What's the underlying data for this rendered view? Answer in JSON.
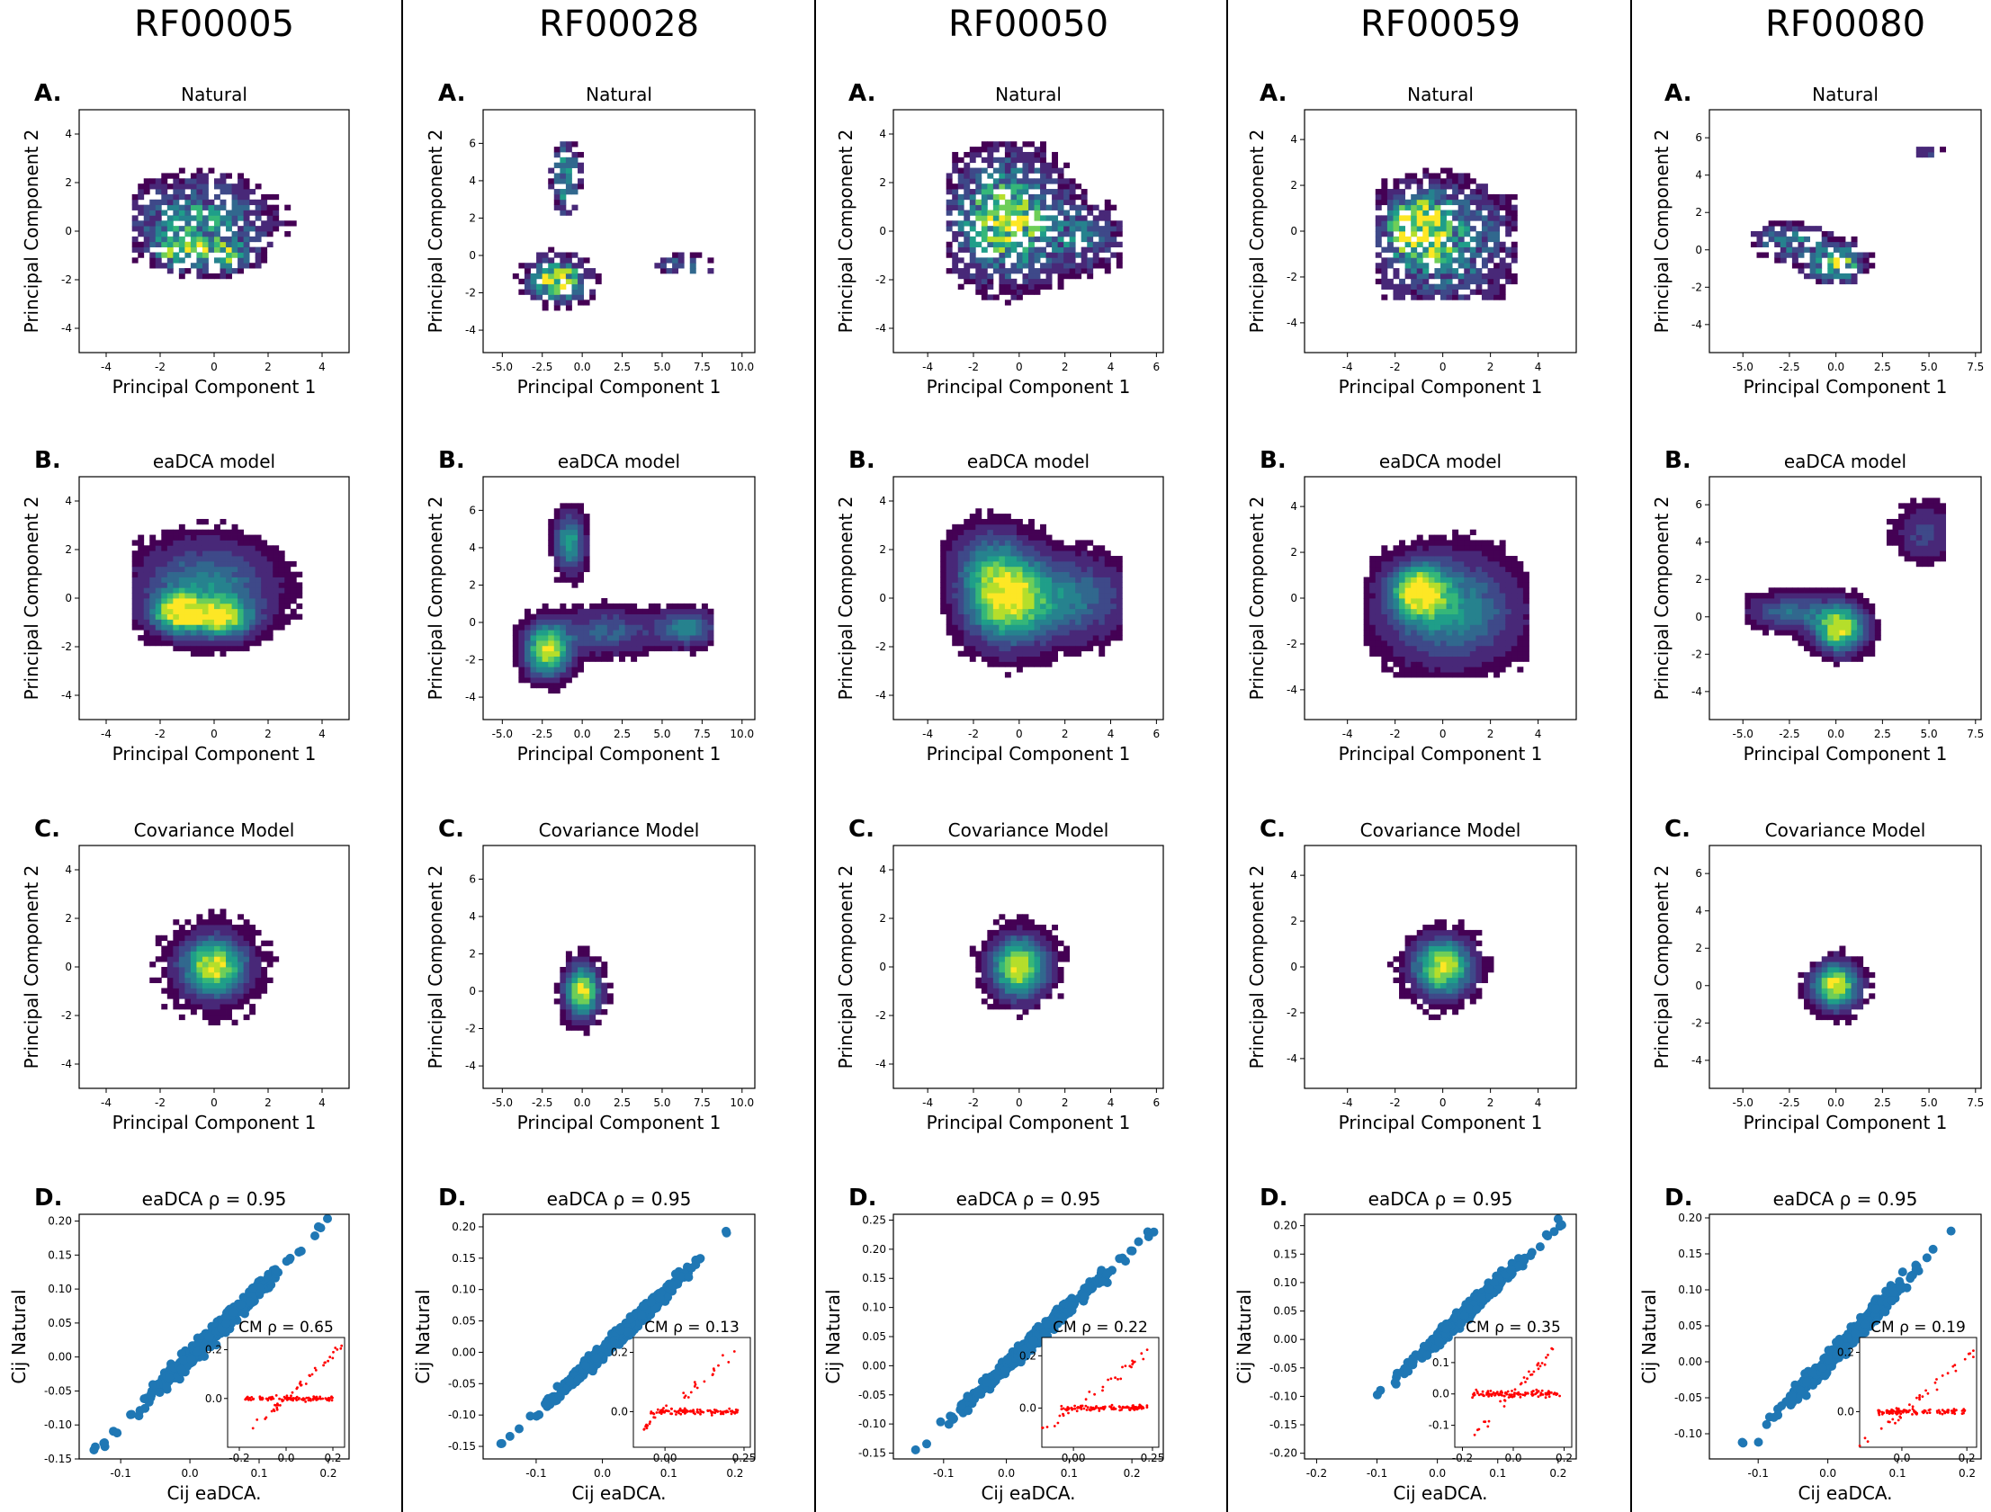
{
  "colors": {
    "viridis": [
      "#440154",
      "#482878",
      "#3e4989",
      "#31688e",
      "#26828e",
      "#1f9e89",
      "#35b779",
      "#6ece58",
      "#b5de2b",
      "#fde725"
    ],
    "scatter_main": "#1f77b4",
    "scatter_inset": "#ff0000",
    "divider": "#000000"
  },
  "chart_data": {
    "type": "figure-grid",
    "row_titles": [
      "Natural",
      "eaDCA model",
      "Covariance Model"
    ],
    "panel_letters": [
      "A.",
      "B.",
      "C.",
      "D."
    ],
    "pca_xlabel": "Principal Component 1",
    "pca_ylabel": "Principal Component 2",
    "scatter_xlabel": "Cij eaDCA.",
    "scatter_ylabel": "Cij Natural",
    "columns": [
      {
        "family": "RF00005",
        "pca_xlim": [
          -5,
          5
        ],
        "pca_ylim": [
          -5,
          5
        ],
        "pca_xticks": [
          "-4",
          "-2",
          "0",
          "2",
          "4"
        ],
        "pca_xtick_vals": [
          -4,
          -2,
          0,
          2,
          4
        ],
        "pca_yticks": [
          "-4",
          "-2",
          "0",
          "2",
          "4"
        ],
        "pca_ytick_vals": [
          -4,
          -2,
          0,
          2,
          4
        ],
        "natural_blobs": [
          {
            "x": -1.3,
            "y": -0.7,
            "sx": 0.5,
            "sy": 0.4,
            "w": 1.0
          },
          {
            "x": 0.3,
            "y": -1.0,
            "sx": 0.6,
            "sy": 0.4,
            "w": 0.7
          },
          {
            "x": -0.5,
            "y": 0.4,
            "sx": 1.6,
            "sy": 1.1,
            "w": 0.6
          }
        ],
        "natural_range": {
          "x": [
            -3.0,
            3.0
          ],
          "y": [
            -2.6,
            2.7
          ]
        },
        "model_blobs": [
          {
            "x": -1.3,
            "y": -0.6,
            "sx": 0.6,
            "sy": 0.5,
            "w": 1.0
          },
          {
            "x": 0.3,
            "y": -0.8,
            "sx": 0.7,
            "sy": 0.5,
            "w": 0.8
          },
          {
            "x": -0.3,
            "y": 0.4,
            "sx": 1.6,
            "sy": 1.2,
            "w": 0.5
          }
        ],
        "model_range": {
          "x": [
            -3.1,
            3.2
          ],
          "y": [
            -2.7,
            3.4
          ]
        },
        "cm_blob": {
          "x": 0.0,
          "y": 0.0,
          "sx": 0.8,
          "sy": 0.8,
          "r": 2.6
        },
        "scatter_title": "eaDCA ρ = 0.95",
        "scatter_xlim": [
          -0.16,
          0.23
        ],
        "scatter_ylim": [
          -0.15,
          0.21
        ],
        "scatter_xticks": [
          "-0.1",
          "0.0",
          "0.1",
          "0.2"
        ],
        "scatter_xtick_vals": [
          -0.1,
          0.0,
          0.1,
          0.2
        ],
        "scatter_yticks": [
          "-0.15",
          "-0.10",
          "-0.05",
          "0.00",
          "0.05",
          "0.10",
          "0.15",
          "0.20"
        ],
        "scatter_ytick_vals": [
          -0.15,
          -0.1,
          -0.05,
          0.0,
          0.05,
          0.1,
          0.15,
          0.2
        ],
        "scatter_main_range": [
          -0.14,
          0.21
        ],
        "inset_title": "CM ρ = 0.65",
        "inset_xlim": [
          -0.25,
          0.25
        ],
        "inset_ylim": [
          -0.2,
          0.25
        ],
        "inset_xticks": [
          "-0.2",
          "0.0",
          "0.2"
        ],
        "inset_xtick_vals": [
          -0.2,
          0.0,
          0.2
        ],
        "inset_yticks": [
          "0.0",
          "0.2"
        ],
        "inset_ytick_vals": [
          0.0,
          0.2
        ]
      },
      {
        "family": "RF00028",
        "pca_xlim": [
          -6.2,
          10.8
        ],
        "pca_ylim": [
          -5.2,
          7.8
        ],
        "pca_xticks": [
          "-5.0",
          "-2.5",
          "0.0",
          "2.5",
          "5.0",
          "7.5",
          "10.0"
        ],
        "pca_xtick_vals": [
          -5,
          -2.5,
          0,
          2.5,
          5,
          7.5,
          10
        ],
        "pca_yticks": [
          "-4",
          "-2",
          "0",
          "2",
          "4",
          "6"
        ],
        "pca_ytick_vals": [
          -4,
          -2,
          0,
          2,
          4,
          6
        ],
        "natural_blobs": [
          {
            "x": -1.5,
            "y": -1.3,
            "sx": 1.2,
            "sy": 0.7,
            "w": 1.0
          },
          {
            "x": -1.0,
            "y": 4.2,
            "sx": 0.5,
            "sy": 1.2,
            "w": 0.7
          },
          {
            "x": 6.5,
            "y": -0.5,
            "sx": 1.0,
            "sy": 0.3,
            "w": 0.6
          }
        ],
        "natural_range": {
          "x": [
            -4.3,
            8.3
          ],
          "y": [
            -3.0,
            6.0
          ]
        },
        "model_blobs": [
          {
            "x": -2.2,
            "y": -1.5,
            "sx": 0.9,
            "sy": 0.9,
            "w": 1.0
          },
          {
            "x": -0.8,
            "y": 4.3,
            "sx": 0.6,
            "sy": 1.0,
            "w": 0.6
          },
          {
            "x": 6.5,
            "y": -0.3,
            "sx": 1.2,
            "sy": 0.6,
            "w": 0.5
          },
          {
            "x": 1.5,
            "y": -0.5,
            "sx": 2.0,
            "sy": 0.8,
            "w": 0.35
          }
        ],
        "model_range": {
          "x": [
            -4.6,
            8.2
          ],
          "y": [
            -4.5,
            6.3
          ]
        },
        "cm_blob": {
          "x": 0.0,
          "y": 0.0,
          "sx": 0.7,
          "sy": 0.9,
          "r": 2.3
        },
        "scatter_title": "eaDCA ρ = 0.95",
        "scatter_xlim": [
          -0.18,
          0.23
        ],
        "scatter_ylim": [
          -0.17,
          0.22
        ],
        "scatter_xticks": [
          "-0.1",
          "0.0",
          "0.1",
          "0.2"
        ],
        "scatter_xtick_vals": [
          -0.1,
          0.0,
          0.1,
          0.2
        ],
        "scatter_yticks": [
          "-0.15",
          "-0.10",
          "-0.05",
          "0.00",
          "0.05",
          "0.10",
          "0.15",
          "0.20"
        ],
        "scatter_ytick_vals": [
          -0.15,
          -0.1,
          -0.05,
          0.0,
          0.05,
          0.1,
          0.15,
          0.2
        ],
        "scatter_main_range": [
          -0.16,
          0.21
        ],
        "inset_title": "CM ρ = 0.13",
        "inset_xlim": [
          -0.1,
          0.27
        ],
        "inset_ylim": [
          -0.12,
          0.25
        ],
        "inset_xticks": [
          "0.00",
          "0.25"
        ],
        "inset_xtick_vals": [
          0.0,
          0.25
        ],
        "inset_yticks": [
          "0.0",
          "0.2"
        ],
        "inset_ytick_vals": [
          0.0,
          0.2
        ]
      },
      {
        "family": "RF00050",
        "pca_xlim": [
          -5.5,
          6.3
        ],
        "pca_ylim": [
          -5.0,
          5.0
        ],
        "pca_xticks": [
          "-4",
          "-2",
          "0",
          "2",
          "4",
          "6"
        ],
        "pca_xtick_vals": [
          -4,
          -2,
          0,
          2,
          4,
          6
        ],
        "pca_yticks": [
          "-4",
          "-2",
          "0",
          "2",
          "4"
        ],
        "pca_ytick_vals": [
          -4,
          -2,
          0,
          2,
          4
        ],
        "natural_blobs": [
          {
            "x": -0.5,
            "y": 0.5,
            "sx": 1.5,
            "sy": 1.5,
            "w": 1.0
          },
          {
            "x": 3.0,
            "y": -0.3,
            "sx": 1.0,
            "sy": 0.8,
            "w": 0.4
          }
        ],
        "natural_range": {
          "x": [
            -3.2,
            4.6
          ],
          "y": [
            -3.0,
            3.6
          ]
        },
        "model_blobs": [
          {
            "x": -0.5,
            "y": 0.0,
            "sx": 1.2,
            "sy": 1.2,
            "w": 1.0
          },
          {
            "x": 2.5,
            "y": 0.0,
            "sx": 1.5,
            "sy": 1.1,
            "w": 0.4
          },
          {
            "x": -1.5,
            "y": 1.5,
            "sx": 1.0,
            "sy": 1.0,
            "w": 0.3
          }
        ],
        "model_range": {
          "x": [
            -3.5,
            4.5
          ],
          "y": [
            -3.8,
            3.8
          ]
        },
        "cm_blob": {
          "x": 0.0,
          "y": 0.0,
          "sx": 0.8,
          "sy": 0.8,
          "r": 2.4
        },
        "scatter_title": "eaDCA ρ = 0.95",
        "scatter_xlim": [
          -0.18,
          0.25
        ],
        "scatter_ylim": [
          -0.16,
          0.26
        ],
        "scatter_xticks": [
          "-0.1",
          "0.0",
          "0.1",
          "0.2"
        ],
        "scatter_xtick_vals": [
          -0.1,
          0.0,
          0.1,
          0.2
        ],
        "scatter_yticks": [
          "-0.15",
          "-0.10",
          "-0.05",
          "0.00",
          "0.05",
          "0.10",
          "0.15",
          "0.20",
          "0.25"
        ],
        "scatter_ytick_vals": [
          -0.15,
          -0.1,
          -0.05,
          0.0,
          0.05,
          0.1,
          0.15,
          0.2,
          0.25
        ],
        "scatter_main_range": [
          -0.15,
          0.235
        ],
        "inset_title": "CM ρ = 0.22",
        "inset_xlim": [
          -0.1,
          0.27
        ],
        "inset_ylim": [
          -0.15,
          0.27
        ],
        "inset_xticks": [
          "0.00",
          "0.25"
        ],
        "inset_xtick_vals": [
          0.0,
          0.25
        ],
        "inset_yticks": [
          "0.0",
          "0.2"
        ],
        "inset_ytick_vals": [
          0.0,
          0.2
        ]
      },
      {
        "family": "RF00059",
        "pca_xlim": [
          -5.8,
          5.6
        ],
        "pca_ylim": [
          -5.3,
          5.3
        ],
        "pca_xticks": [
          "-4",
          "-2",
          "0",
          "2",
          "4"
        ],
        "pca_xtick_vals": [
          -4,
          -2,
          0,
          2,
          4
        ],
        "pca_yticks": [
          "-4",
          "-2",
          "0",
          "2",
          "4"
        ],
        "pca_ytick_vals": [
          -4,
          -2,
          0,
          2,
          4
        ],
        "natural_blobs": [
          {
            "x": -1.0,
            "y": 0.2,
            "sx": 0.8,
            "sy": 0.8,
            "w": 1.0
          },
          {
            "x": 0.0,
            "y": -0.5,
            "sx": 1.8,
            "sy": 1.6,
            "w": 0.6
          }
        ],
        "natural_range": {
          "x": [
            -2.8,
            3.2
          ],
          "y": [
            -3.0,
            3.0
          ]
        },
        "model_blobs": [
          {
            "x": -1.0,
            "y": 0.3,
            "sx": 0.7,
            "sy": 0.7,
            "w": 1.0
          },
          {
            "x": 0.3,
            "y": -0.5,
            "sx": 1.8,
            "sy": 1.5,
            "w": 0.55
          }
        ],
        "model_range": {
          "x": [
            -3.3,
            3.5
          ],
          "y": [
            -3.4,
            3.2
          ]
        },
        "cm_blob": {
          "x": 0.0,
          "y": 0.0,
          "sx": 0.8,
          "sy": 0.8,
          "r": 2.4
        },
        "scatter_title": "eaDCA ρ = 0.95",
        "scatter_xlim": [
          -0.22,
          0.23
        ],
        "scatter_ylim": [
          -0.21,
          0.22
        ],
        "scatter_xticks": [
          "-0.2",
          "-0.1",
          "0.0",
          "0.1",
          "0.2"
        ],
        "scatter_xtick_vals": [
          -0.2,
          -0.1,
          0.0,
          0.1,
          0.2
        ],
        "scatter_yticks": [
          "-0.20",
          "-0.15",
          "-0.10",
          "-0.05",
          "0.00",
          "0.05",
          "0.10",
          "0.15",
          "0.20"
        ],
        "scatter_ytick_vals": [
          -0.2,
          -0.15,
          -0.1,
          -0.05,
          0.0,
          0.05,
          0.1,
          0.15,
          0.2
        ],
        "scatter_main_range": [
          -0.11,
          0.21
        ],
        "inset_title": "CM ρ = 0.35",
        "inset_xlim": [
          -0.23,
          0.23
        ],
        "inset_ylim": [
          -0.17,
          0.18
        ],
        "inset_xticks": [
          "-0.2",
          "0.0",
          "0.2"
        ],
        "inset_xtick_vals": [
          -0.2,
          0.0,
          0.2
        ],
        "inset_yticks": [
          "-0.1",
          "0.0",
          "0.1"
        ],
        "inset_ytick_vals": [
          -0.1,
          0.0,
          0.1
        ]
      },
      {
        "family": "RF00080",
        "pca_xlim": [
          -6.8,
          7.8
        ],
        "pca_ylim": [
          -5.5,
          7.5
        ],
        "pca_xticks": [
          "-5.0",
          "-2.5",
          "0.0",
          "2.5",
          "5.0",
          "7.5"
        ],
        "pca_xtick_vals": [
          -5,
          -2.5,
          0,
          2.5,
          5,
          7.5
        ],
        "pca_yticks": [
          "-4",
          "-2",
          "0",
          "2",
          "4",
          "6"
        ],
        "pca_ytick_vals": [
          -4,
          -2,
          0,
          2,
          4,
          6
        ],
        "natural_blobs": [
          {
            "x": 0.0,
            "y": -0.7,
            "sx": 0.9,
            "sy": 0.6,
            "w": 1.0
          },
          {
            "x": -2.5,
            "y": 0.5,
            "sx": 1.2,
            "sy": 0.6,
            "w": 0.5
          },
          {
            "x": 5.0,
            "y": 5.3,
            "sx": 0.6,
            "sy": 0.3,
            "w": 0.25
          }
        ],
        "natural_range": {
          "x": [
            -4.5,
            6.0
          ],
          "y": [
            -3.8,
            6.0
          ]
        },
        "model_blobs": [
          {
            "x": 0.2,
            "y": -0.6,
            "sx": 0.9,
            "sy": 0.8,
            "w": 1.0
          },
          {
            "x": -2.5,
            "y": 0.3,
            "sx": 1.4,
            "sy": 0.6,
            "w": 0.4
          },
          {
            "x": 4.8,
            "y": 4.5,
            "sx": 1.0,
            "sy": 1.0,
            "w": 0.25
          }
        ],
        "model_range": {
          "x": [
            -4.8,
            6.0
          ],
          "y": [
            -4.0,
            6.5
          ]
        },
        "cm_blob": {
          "x": 0.0,
          "y": 0.0,
          "sx": 0.8,
          "sy": 0.8,
          "r": 2.3
        },
        "scatter_title": "eaDCA ρ = 0.95",
        "scatter_xlim": [
          -0.17,
          0.22
        ],
        "scatter_ylim": [
          -0.135,
          0.205
        ],
        "scatter_xticks": [
          "-0.1",
          "0.0",
          "0.1",
          "0.2"
        ],
        "scatter_xtick_vals": [
          -0.1,
          0.0,
          0.1,
          0.2
        ],
        "scatter_yticks": [
          "-0.10",
          "-0.05",
          "0.00",
          "0.05",
          "0.10",
          "0.15",
          "0.20"
        ],
        "scatter_ytick_vals": [
          -0.1,
          -0.05,
          0.0,
          0.05,
          0.1,
          0.15,
          0.2
        ],
        "scatter_main_range": [
          -0.13,
          0.19
        ],
        "inset_title": "CM ρ = 0.19",
        "inset_xlim": [
          -0.13,
          0.23
        ],
        "inset_ylim": [
          -0.12,
          0.25
        ],
        "inset_xticks": [
          "0.0",
          "0.2"
        ],
        "inset_xtick_vals": [
          0.0,
          0.2
        ],
        "inset_yticks": [
          "0.0",
          "0.2"
        ],
        "inset_ytick_vals": [
          0.0,
          0.2
        ]
      }
    ]
  }
}
